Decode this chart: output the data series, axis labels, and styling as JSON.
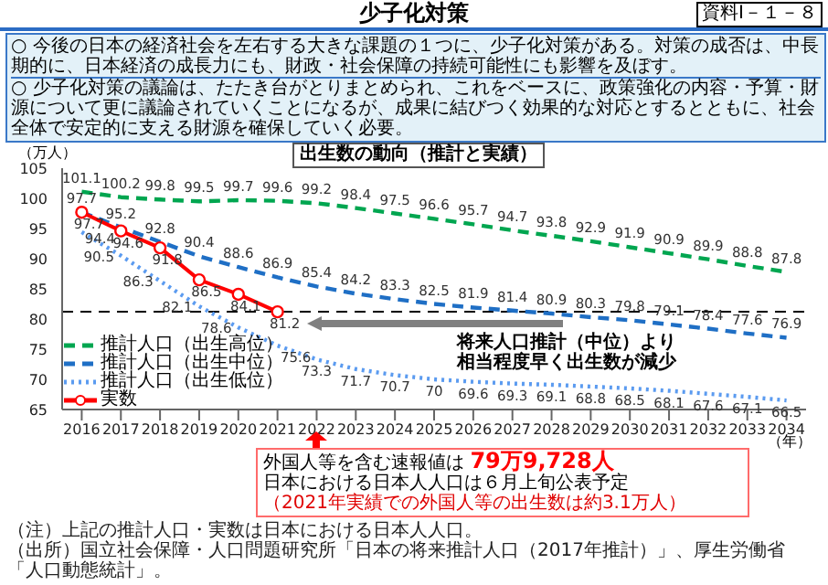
{
  "chart_data": {
    "type": "line",
    "title": "少子化対策",
    "subtitle": "出生数の動向（推計と実績）",
    "ylabel": "（万人）",
    "xlabel": "（年）",
    "categories": [
      "2016",
      "2017",
      "2018",
      "2019",
      "2020",
      "2021",
      "2022",
      "2023",
      "2024",
      "2025",
      "2026",
      "2027",
      "2028",
      "2029",
      "2030",
      "2031",
      "2032",
      "2033",
      "2034"
    ],
    "series": [
      {
        "name": "推計人口（出生高位）",
        "color": "#00a650",
        "line_style": "dashed",
        "marker": "none",
        "values": [
          101.1,
          100.2,
          99.8,
          99.5,
          99.7,
          99.6,
          99.2,
          98.4,
          97.5,
          96.6,
          95.7,
          94.7,
          93.8,
          92.9,
          91.9,
          90.9,
          89.9,
          88.8,
          87.8
        ]
      },
      {
        "name": "推計人口（出生中位）",
        "color": "#1f6fc5",
        "line_style": "dashed",
        "marker": "none",
        "values": [
          97.7,
          95.2,
          92.8,
          90.4,
          88.6,
          86.9,
          85.4,
          84.2,
          83.3,
          82.5,
          81.9,
          81.4,
          80.9,
          80.3,
          79.8,
          79.1,
          78.4,
          77.6,
          76.9
        ]
      },
      {
        "name": "推計人口（出生低位）",
        "color": "#5b9bf0",
        "line_style": "dotted",
        "marker": "none",
        "values": [
          94.4,
          90.5,
          86.3,
          82.1,
          78.6,
          75.6,
          73.3,
          71.7,
          70.7,
          70.0,
          69.6,
          69.3,
          69.1,
          68.8,
          68.5,
          68.1,
          67.6,
          67.1,
          66.5
        ]
      },
      {
        "name": "実数",
        "color": "#ff0000",
        "line_style": "solid",
        "marker": "circle",
        "values": [
          97.7,
          94.6,
          91.8,
          86.5,
          84.1,
          81.2,
          null,
          null,
          null,
          null,
          null,
          null,
          null,
          null,
          null,
          null,
          null,
          null,
          null
        ]
      }
    ],
    "ylim": [
      65,
      105
    ],
    "yticks": [
      65,
      70,
      75,
      80,
      85,
      90,
      95,
      100,
      105
    ],
    "grid": false,
    "legend": "bottom left",
    "data_labels": true,
    "ref_lines": [
      {
        "axis": "y",
        "value": 81.2,
        "color": "#000000",
        "line_style": "dashed"
      }
    ],
    "annotations": [
      "資料Ⅰ－１－８",
      "○ 今後の日本の経済社会を左右する大きな課題の１つに、少子化対策がある。対策の成否は、中長期的に、日本経済の成長力にも、財政・社会保障の持続可能性にも影響を及ぼす。",
      "○ 少子化対策の議論は、たたき台がとりまとめられ、これをベースに、政策強化の内容・予算・財源について更に議論されていくことになるが、成果に結びつく効果的な対応とするとともに、社会全体で安定的に支える財源を確保していく必要。",
      "将来人口推計（中位）より",
      "相当程度早く出生数が減少",
      "外国人等を含む速報値は",
      "79万9,728人",
      "日本における日本人人口は６月上旬公表予定",
      "（2021年実績での外国人等の出生数は約3.1万人）",
      "（注）上記の推計人口・実数は日本における日本人人口。",
      "（出所）国立社会保障・人口問題研究所「日本の将来推計人口（2017年推計）」、厚生労働省「人口動態統計」。"
    ]
  }
}
